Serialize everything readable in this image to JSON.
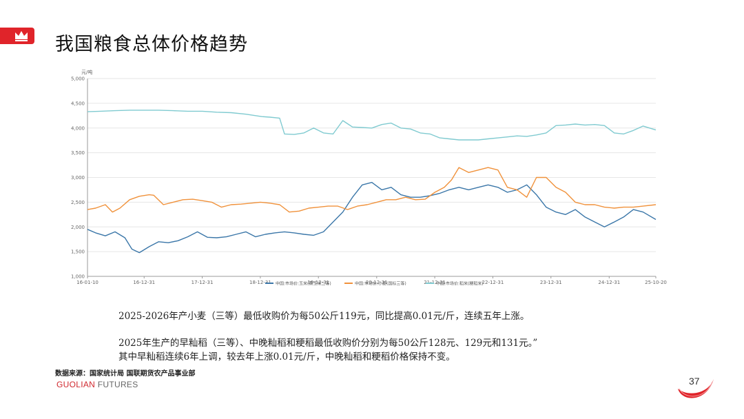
{
  "header": {
    "title": "我国粮食总体价格趋势",
    "logo_icon": "crown-icon",
    "accent_color": "#e0242a"
  },
  "chart_data": {
    "type": "line",
    "ylabel": "元/吨",
    "ylim": [
      1000,
      5000
    ],
    "yticks": [
      "1,000",
      "1,500",
      "2,000",
      "2,500",
      "3,000",
      "3,500",
      "4,000",
      "4,500",
      "5,000"
    ],
    "ytick_values": [
      1000,
      1500,
      2000,
      2500,
      3000,
      3500,
      4000,
      4500,
      5000
    ],
    "xlim": [
      "2016-01-10",
      "2025-10-20"
    ],
    "xticks": [
      "16-01-10",
      "16-12-31",
      "17-12-31",
      "18-12-31",
      "19-12-31",
      "20-12-31",
      "21-12-31",
      "22-12-31",
      "23-12-31",
      "24-12-31",
      "25-10-20"
    ],
    "xtick_dates": [
      "2016-01-10",
      "2016-12-31",
      "2017-12-31",
      "2018-12-31",
      "2019-12-31",
      "2020-12-31",
      "2021-12-31",
      "2022-12-31",
      "2023-12-31",
      "2024-12-31",
      "2025-10-20"
    ],
    "grid": true,
    "legend_position": "bottom",
    "series": [
      {
        "name": "中国:市场价:玉米(黄玉米二等)",
        "color": "#3a76a8",
        "x": [
          "2016-01-10",
          "2016-03-01",
          "2016-05-01",
          "2016-07-01",
          "2016-09-01",
          "2016-10-15",
          "2016-12-01",
          "2017-02-01",
          "2017-04-01",
          "2017-06-01",
          "2017-08-01",
          "2017-10-01",
          "2017-12-01",
          "2018-02-01",
          "2018-04-01",
          "2018-06-01",
          "2018-08-01",
          "2018-10-01",
          "2018-12-01",
          "2019-02-01",
          "2019-04-01",
          "2019-06-01",
          "2019-08-01",
          "2019-10-01",
          "2019-12-01",
          "2020-02-01",
          "2020-04-01",
          "2020-06-01",
          "2020-08-01",
          "2020-10-01",
          "2020-12-01",
          "2021-02-01",
          "2021-04-01",
          "2021-06-01",
          "2021-08-01",
          "2021-10-01",
          "2021-12-01",
          "2022-02-01",
          "2022-04-01",
          "2022-06-01",
          "2022-08-01",
          "2022-10-01",
          "2022-12-01",
          "2023-02-01",
          "2023-04-01",
          "2023-06-01",
          "2023-08-01",
          "2023-10-01",
          "2023-12-01",
          "2024-02-01",
          "2024-04-01",
          "2024-06-01",
          "2024-08-01",
          "2024-10-01",
          "2024-12-01",
          "2025-02-01",
          "2025-04-01",
          "2025-06-01",
          "2025-08-01",
          "2025-10-20"
        ],
        "values": [
          1950,
          1880,
          1820,
          1900,
          1780,
          1550,
          1480,
          1600,
          1700,
          1680,
          1720,
          1800,
          1900,
          1790,
          1780,
          1800,
          1850,
          1900,
          1800,
          1850,
          1880,
          1900,
          1880,
          1850,
          1830,
          1900,
          2100,
          2300,
          2600,
          2850,
          2900,
          2750,
          2800,
          2650,
          2600,
          2600,
          2630,
          2680,
          2750,
          2800,
          2750,
          2800,
          2850,
          2800,
          2700,
          2750,
          2850,
          2650,
          2400,
          2300,
          2250,
          2350,
          2200,
          2100,
          2000,
          2100,
          2200,
          2350,
          2300,
          2150
        ]
      },
      {
        "name": "中国:市场价:小麦(国标三等)",
        "color": "#f0913a",
        "x": [
          "2016-01-10",
          "2016-03-01",
          "2016-05-01",
          "2016-06-15",
          "2016-08-01",
          "2016-10-01",
          "2016-12-01",
          "2017-02-01",
          "2017-03-01",
          "2017-05-01",
          "2017-07-01",
          "2017-09-01",
          "2017-11-01",
          "2018-01-01",
          "2018-03-01",
          "2018-05-01",
          "2018-07-01",
          "2018-09-01",
          "2018-11-01",
          "2019-01-01",
          "2019-03-01",
          "2019-05-01",
          "2019-07-01",
          "2019-09-01",
          "2019-11-01",
          "2020-01-01",
          "2020-03-01",
          "2020-05-01",
          "2020-07-01",
          "2020-09-01",
          "2020-11-01",
          "2021-01-01",
          "2021-03-01",
          "2021-05-01",
          "2021-07-01",
          "2021-09-01",
          "2021-11-01",
          "2022-01-01",
          "2022-03-01",
          "2022-04-15",
          "2022-06-01",
          "2022-08-01",
          "2022-10-01",
          "2022-12-01",
          "2023-02-01",
          "2023-04-01",
          "2023-06-01",
          "2023-08-01",
          "2023-10-01",
          "2023-12-01",
          "2024-02-01",
          "2024-04-01",
          "2024-06-01",
          "2024-08-01",
          "2024-10-01",
          "2024-12-01",
          "2025-02-01",
          "2025-04-01",
          "2025-06-01",
          "2025-08-01",
          "2025-10-20"
        ],
        "values": [
          2350,
          2380,
          2450,
          2300,
          2380,
          2550,
          2620,
          2650,
          2640,
          2450,
          2500,
          2550,
          2560,
          2530,
          2500,
          2400,
          2450,
          2460,
          2480,
          2500,
          2480,
          2450,
          2300,
          2320,
          2380,
          2400,
          2420,
          2420,
          2350,
          2420,
          2450,
          2500,
          2550,
          2550,
          2600,
          2550,
          2560,
          2700,
          2800,
          2950,
          3200,
          3100,
          3150,
          3200,
          3150,
          2800,
          2750,
          2600,
          3000,
          3000,
          2800,
          2700,
          2500,
          2450,
          2450,
          2400,
          2380,
          2400,
          2400,
          2420,
          2450
        ]
      },
      {
        "name": "中国:市场价:稻米(粳稻米)",
        "color": "#7fcad0",
        "x": [
          "2016-01-10",
          "2016-04-01",
          "2016-07-01",
          "2016-10-01",
          "2017-01-01",
          "2017-04-01",
          "2017-07-01",
          "2017-10-01",
          "2018-01-01",
          "2018-04-01",
          "2018-07-01",
          "2018-10-01",
          "2018-12-01",
          "2019-01-10",
          "2019-03-01",
          "2019-05-01",
          "2019-06-01",
          "2019-08-01",
          "2019-10-01",
          "2019-12-01",
          "2020-02-01",
          "2020-04-01",
          "2020-06-01",
          "2020-08-01",
          "2020-10-01",
          "2020-12-01",
          "2021-02-01",
          "2021-04-01",
          "2021-06-01",
          "2021-08-01",
          "2021-10-01",
          "2021-12-01",
          "2022-02-01",
          "2022-04-01",
          "2022-06-01",
          "2022-08-01",
          "2022-10-01",
          "2022-12-01",
          "2023-02-01",
          "2023-04-01",
          "2023-06-01",
          "2023-08-01",
          "2023-10-01",
          "2023-12-01",
          "2024-02-01",
          "2024-04-01",
          "2024-06-01",
          "2024-08-01",
          "2024-10-01",
          "2024-12-01",
          "2025-02-01",
          "2025-04-01",
          "2025-06-01",
          "2025-08-01",
          "2025-10-20"
        ],
        "values": [
          4330,
          4340,
          4350,
          4360,
          4360,
          4360,
          4350,
          4340,
          4340,
          4320,
          4310,
          4280,
          4250,
          4230,
          4220,
          4200,
          3880,
          3870,
          3900,
          4000,
          3900,
          3880,
          4150,
          4020,
          4010,
          4000,
          4070,
          4100,
          4000,
          3980,
          3900,
          3880,
          3800,
          3780,
          3760,
          3760,
          3760,
          3780,
          3800,
          3820,
          3840,
          3830,
          3860,
          3900,
          4050,
          4060,
          4080,
          4060,
          4070,
          4050,
          3900,
          3880,
          3950,
          4040,
          3960
        ]
      }
    ]
  },
  "notes": [
    "2025-2026年产小麦（三等）最低收购价为每50公斤119元，同比提高0.01元/斤，连续五年上涨。",
    "2025年生产的早籼稻（三等）、中晚籼稻和粳稻最低收购价分别为每50公斤128元、129元和131元。”",
    "其中早籼稻连续6年上调，较去年上涨0.01元/斤，中晚籼稻和粳稻价格保持不变。"
  ],
  "footer": {
    "source": "数据来源：国家统计局  国联期货农产品事业部",
    "brand_main": "GUOLIAN",
    "brand_sub": " FUTURES",
    "page_number": "37"
  }
}
